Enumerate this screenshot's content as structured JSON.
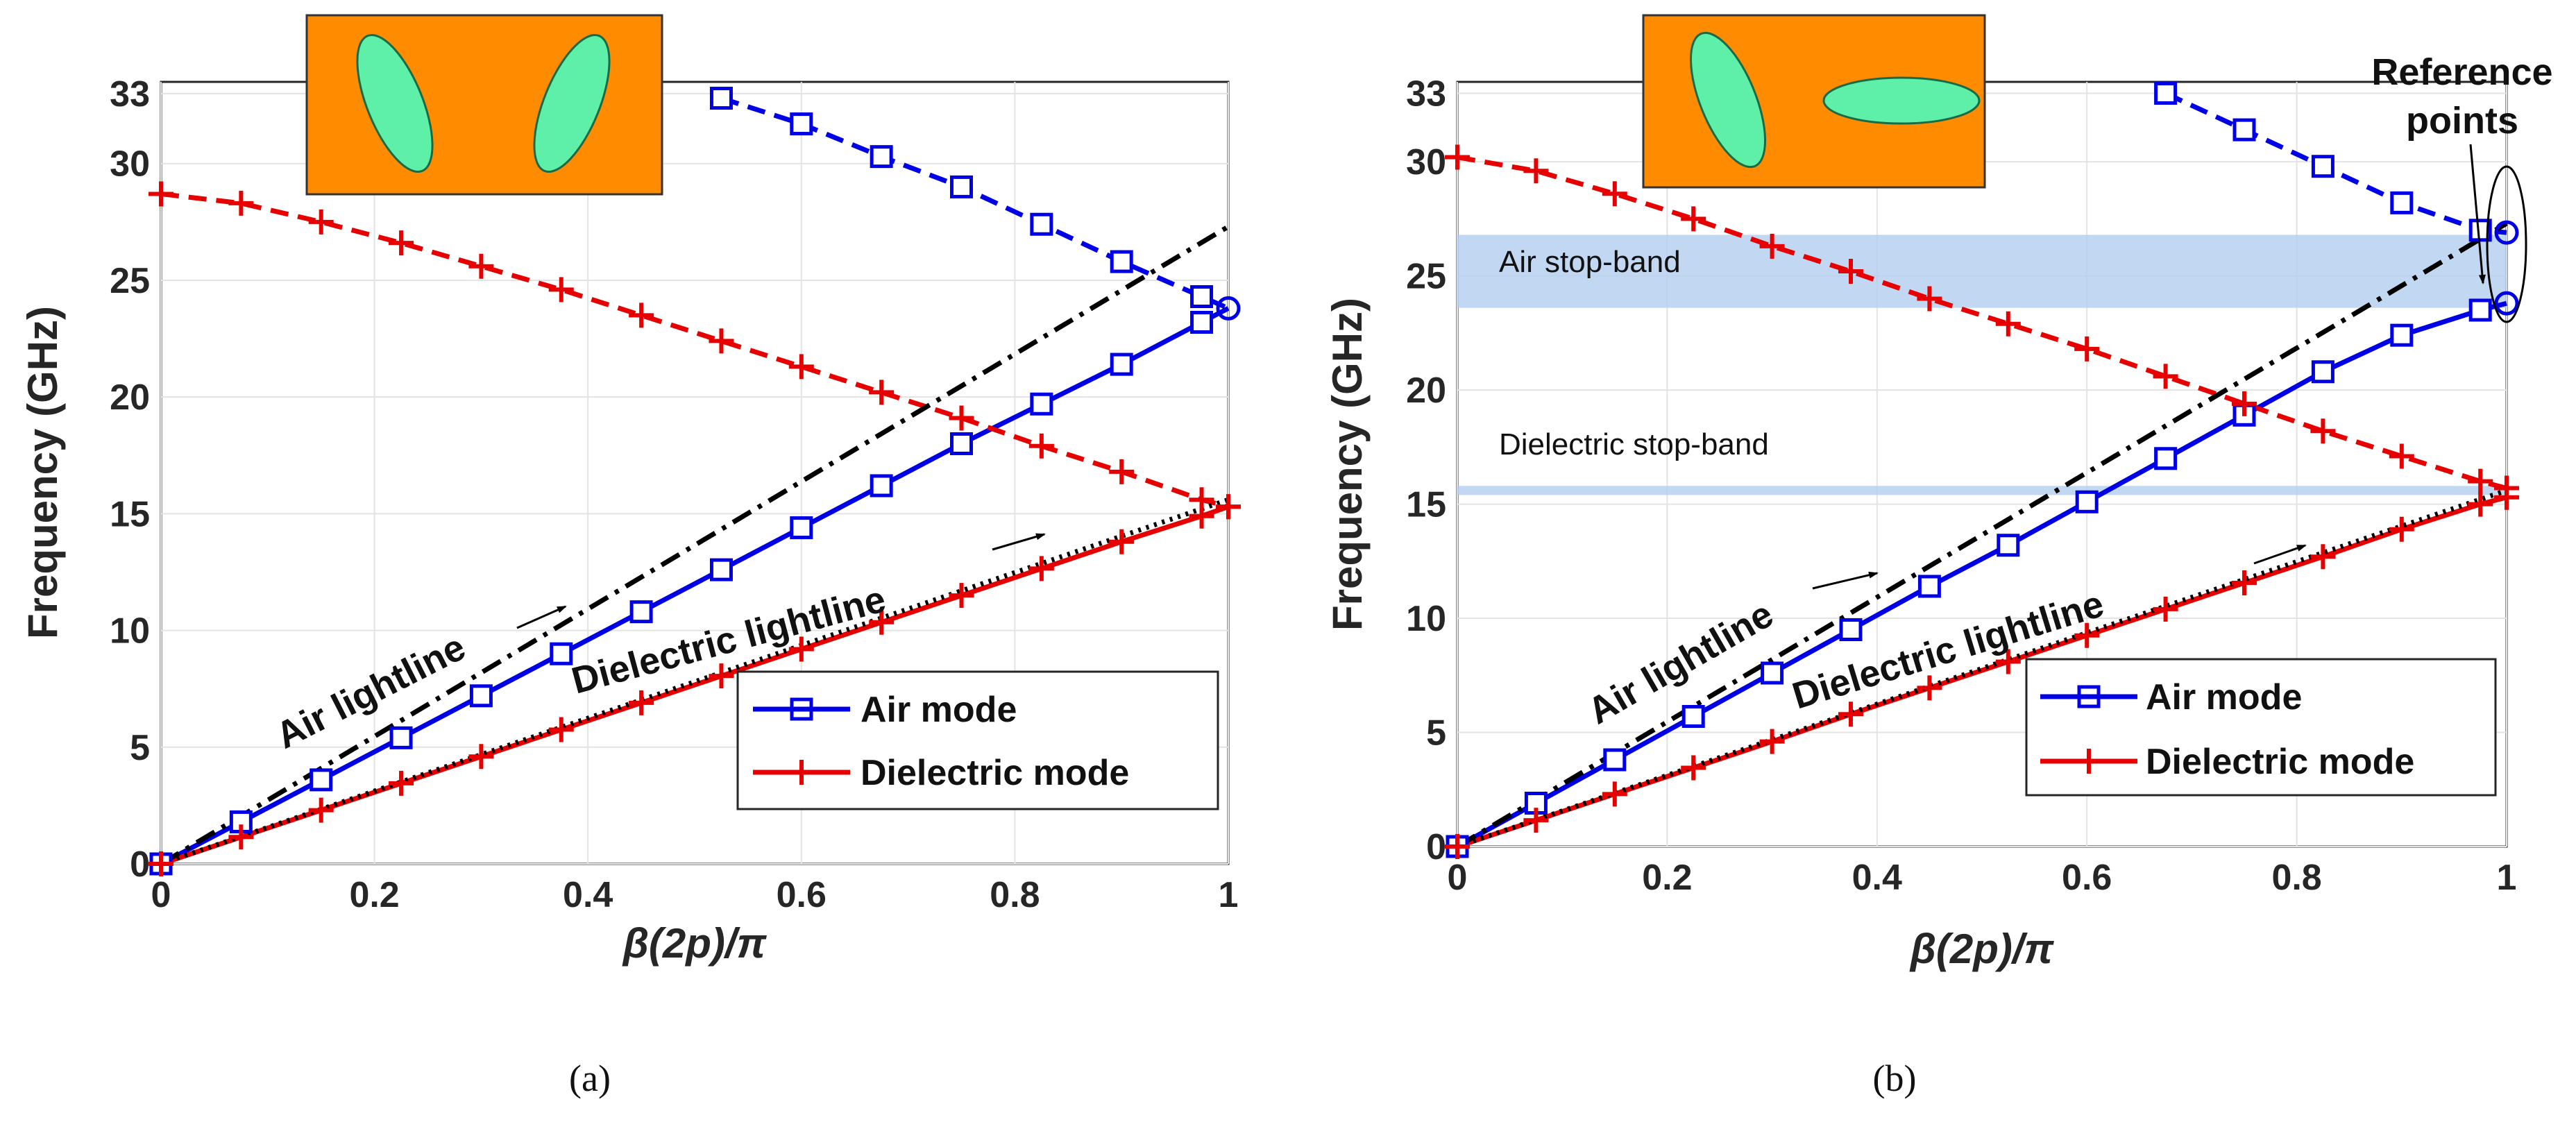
{
  "colors": {
    "air": "#0000e6",
    "dielectric": "#e60000",
    "air_lightline": "#000000",
    "diel_lightline": "#000000",
    "band": "#b3cdee",
    "inset_bg": "#ff8c00",
    "inset_ellipse": "#5ef0a8"
  },
  "chart_data": [
    {
      "type": "line",
      "panel": "(a)",
      "caption": "(a)",
      "xlabel": "β(2p)/π",
      "ylabel": "Frequency (GHz)",
      "xlim": [
        0,
        1
      ],
      "ylim": [
        0,
        33.5
      ],
      "xticks": [
        "0",
        "0.2",
        "0.4",
        "0.6",
        "0.8",
        "1"
      ],
      "yticks": [
        "0",
        "5",
        "10",
        "15",
        "20",
        "25",
        "30",
        "33"
      ],
      "grid": true,
      "legend_position": "bottom-right",
      "legend": [
        "Air mode",
        "Dielectric mode"
      ],
      "annotations": [
        "Air lightline",
        "Dielectric lightline"
      ],
      "inset": "two tilted elliptical air holes",
      "series": [
        {
          "name": "Air mode",
          "style": "solid-square",
          "color": "air",
          "x": [
            0,
            0.075,
            0.15,
            0.225,
            0.3,
            0.375,
            0.45,
            0.525,
            0.6,
            0.675,
            0.75,
            0.825,
            0.9,
            0.975,
            1.0
          ],
          "y": [
            0,
            1.8,
            3.6,
            5.4,
            7.2,
            9.0,
            10.8,
            12.6,
            14.4,
            16.2,
            18.0,
            19.7,
            21.4,
            23.2,
            23.8
          ],
          "marker_last": "circle"
        },
        {
          "name": "Air mode (upper band)",
          "style": "dashed-square",
          "color": "air",
          "x": [
            0.525,
            0.6,
            0.675,
            0.75,
            0.825,
            0.9,
            0.975,
            1.0
          ],
          "y": [
            32.8,
            31.7,
            30.3,
            29.0,
            27.4,
            25.8,
            24.3,
            23.8
          ]
        },
        {
          "name": "Dielectric mode",
          "style": "solid-plus",
          "color": "dielectric",
          "x": [
            0,
            0.075,
            0.15,
            0.225,
            0.3,
            0.375,
            0.45,
            0.525,
            0.6,
            0.675,
            0.75,
            0.825,
            0.9,
            0.975,
            1.0
          ],
          "y": [
            0,
            1.15,
            2.3,
            3.45,
            4.6,
            5.75,
            6.9,
            8.05,
            9.2,
            10.35,
            11.5,
            12.65,
            13.8,
            14.9,
            15.3
          ]
        },
        {
          "name": "Dielectric mode (upper band)",
          "style": "dashed-plus",
          "color": "dielectric",
          "x": [
            0,
            0.075,
            0.15,
            0.225,
            0.3,
            0.375,
            0.45,
            0.525,
            0.6,
            0.675,
            0.75,
            0.825,
            0.9,
            0.975,
            1.0
          ],
          "y": [
            28.7,
            28.3,
            27.5,
            26.6,
            25.6,
            24.6,
            23.5,
            22.4,
            21.3,
            20.2,
            19.1,
            17.9,
            16.8,
            15.6,
            15.3
          ]
        },
        {
          "name": "Air lightline",
          "style": "dashdot",
          "color": "air_lightline",
          "x": [
            0,
            1.0
          ],
          "y": [
            0,
            27.3
          ]
        },
        {
          "name": "Dielectric lightline",
          "style": "dotted",
          "color": "diel_lightline",
          "x": [
            0,
            1.0
          ],
          "y": [
            0,
            15.6
          ]
        }
      ],
      "bands": []
    },
    {
      "type": "line",
      "panel": "(b)",
      "caption": "(b)",
      "xlabel": "β(2p)/π",
      "ylabel": "Frequency (GHz)",
      "xlim": [
        0,
        1
      ],
      "ylim": [
        0,
        33.5
      ],
      "xticks": [
        "0",
        "0.2",
        "0.4",
        "0.6",
        "0.8",
        "1"
      ],
      "yticks": [
        "0",
        "5",
        "10",
        "15",
        "20",
        "25",
        "30",
        "33"
      ],
      "grid": true,
      "legend_position": "bottom-right",
      "legend": [
        "Air mode",
        "Dielectric mode"
      ],
      "annotations": [
        "Air lightline",
        "Dielectric lightline",
        "Reference",
        "points"
      ],
      "inset": "one tilted and one horizontal elliptical air hole",
      "series": [
        {
          "name": "Air mode",
          "style": "solid-square",
          "color": "air",
          "x": [
            0,
            0.075,
            0.15,
            0.225,
            0.3,
            0.375,
            0.45,
            0.525,
            0.6,
            0.675,
            0.75,
            0.825,
            0.9,
            0.975,
            1.0
          ],
          "y": [
            0,
            1.9,
            3.8,
            5.7,
            7.6,
            9.5,
            11.4,
            13.2,
            15.1,
            17.0,
            18.9,
            20.8,
            22.4,
            23.5,
            23.8
          ],
          "marker_last": "circle"
        },
        {
          "name": "Air mode (upper band)",
          "style": "dashed-square",
          "color": "air",
          "x": [
            0.675,
            0.75,
            0.825,
            0.9,
            0.975,
            1.0
          ],
          "y": [
            33.0,
            31.4,
            29.8,
            28.2,
            27.0,
            26.9
          ],
          "marker_last": "circle"
        },
        {
          "name": "Dielectric mode",
          "style": "solid-plus",
          "color": "dielectric",
          "x": [
            0,
            0.075,
            0.15,
            0.225,
            0.3,
            0.375,
            0.45,
            0.525,
            0.6,
            0.675,
            0.75,
            0.825,
            0.9,
            0.975,
            1.0
          ],
          "y": [
            0,
            1.15,
            2.3,
            3.45,
            4.6,
            5.8,
            6.95,
            8.1,
            9.25,
            10.4,
            11.55,
            12.7,
            13.9,
            15.0,
            15.3
          ]
        },
        {
          "name": "Dielectric mode (upper band)",
          "style": "dashed-plus",
          "color": "dielectric",
          "x": [
            0,
            0.075,
            0.15,
            0.225,
            0.3,
            0.375,
            0.45,
            0.525,
            0.6,
            0.675,
            0.75,
            0.825,
            0.9,
            0.975,
            1.0
          ],
          "y": [
            30.2,
            29.6,
            28.6,
            27.5,
            26.3,
            25.2,
            24.0,
            22.9,
            21.8,
            20.6,
            19.4,
            18.2,
            17.1,
            16.0,
            15.7
          ]
        },
        {
          "name": "Air lightline",
          "style": "dashdot",
          "color": "air_lightline",
          "x": [
            0,
            1.0
          ],
          "y": [
            0,
            27.3
          ]
        },
        {
          "name": "Dielectric lightline",
          "style": "dotted",
          "color": "diel_lightline",
          "x": [
            0,
            1.0
          ],
          "y": [
            0,
            15.6
          ]
        }
      ],
      "bands": [
        {
          "label": "Air stop-band",
          "ymin": 23.6,
          "ymax": 26.8
        },
        {
          "label": "Dielectric stop-band",
          "ymin": 15.4,
          "ymax": 15.8
        }
      ]
    }
  ]
}
